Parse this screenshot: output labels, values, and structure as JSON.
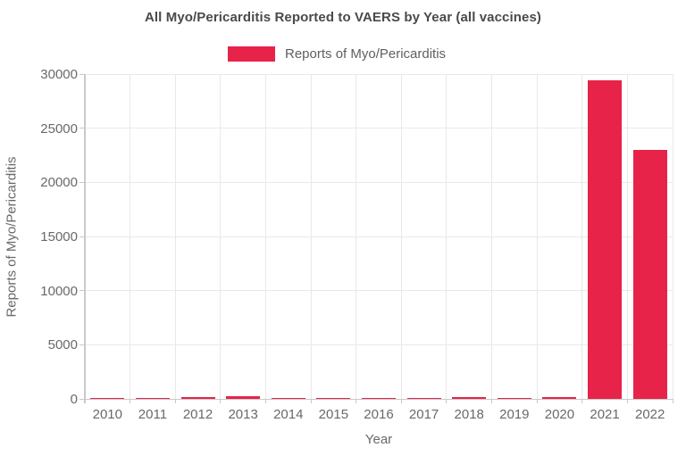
{
  "chart": {
    "title": "All Myo/Pericarditis Reported to VAERS by Year (all vaccines)"
  },
  "legend": {
    "items": [
      {
        "label": "Reports of Myo/Pericarditis",
        "color": "#e7234a"
      }
    ]
  },
  "chart_data": {
    "type": "bar",
    "title": "All Myo/Pericarditis Reported to VAERS by Year (all vaccines)",
    "categories": [
      "2010",
      "2011",
      "2012",
      "2013",
      "2014",
      "2015",
      "2016",
      "2017",
      "2018",
      "2019",
      "2020",
      "2021",
      "2022"
    ],
    "values": [
      120,
      120,
      200,
      210,
      120,
      100,
      100,
      120,
      200,
      120,
      150,
      29400,
      23000
    ],
    "series_name": "Reports of Myo/Pericarditis",
    "xlabel": "Year",
    "ylabel": "Reports of Myo/Pericarditis",
    "ylim": [
      0,
      30000
    ],
    "yticks": [
      0,
      5000,
      10000,
      15000,
      20000,
      25000,
      30000
    ],
    "grid": true,
    "legend_position": "top-center",
    "bar_color": "#e7234a"
  },
  "colors": {
    "bar": "#e7234a",
    "grid": "#e9e9e9",
    "axis": "#c9c9c9",
    "title_text": "#4a4a4a",
    "label_text": "#696969"
  }
}
